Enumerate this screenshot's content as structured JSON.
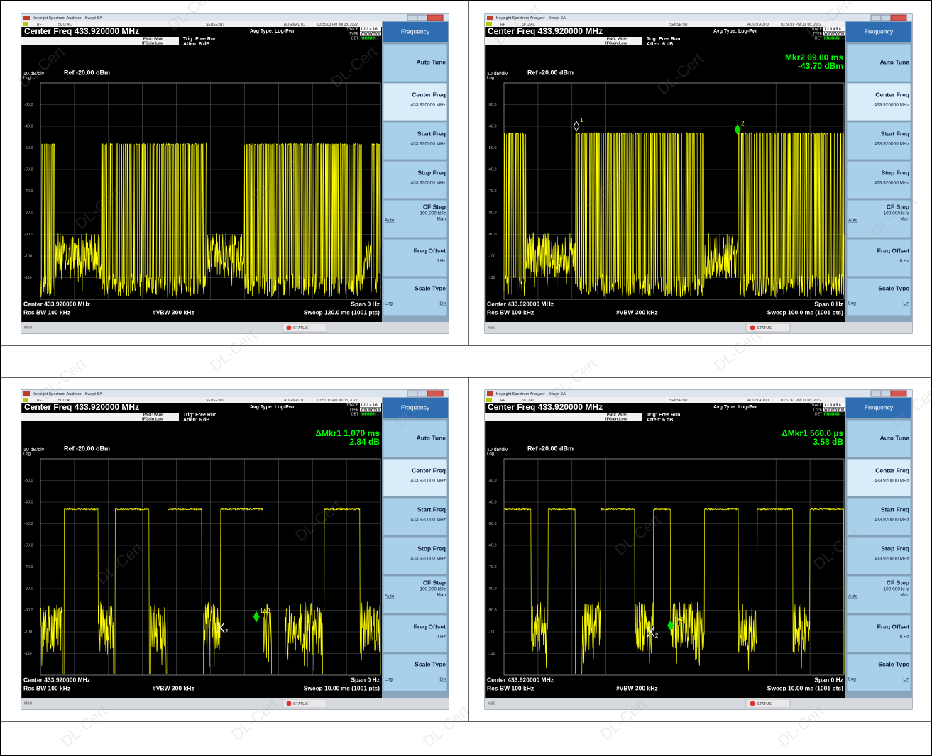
{
  "watermark": "DL-Cert",
  "panels": [
    {
      "window_title": "Keysight Spectrum Analyzer - Swept SA",
      "status_row": [
        "RF",
        "50 Ω  AC",
        "SENSE:INT",
        "ALIGN AUTO",
        "03:55:03 PM Jul 08, 2022"
      ],
      "center_freq": "Center Freq 433.920000 MHz",
      "pno": "PNO: Wide",
      "ifgain": "IFGain:Low",
      "trig": "Trig: Free Run",
      "atten": "Atten: 6 dB",
      "avg_type": "Avg Type: Log-Pwr",
      "trace_rows": [
        {
          "label": "TRACE",
          "value": "1 2 3 4 5 6"
        },
        {
          "label": "TYPE",
          "value": "WWWWWW"
        },
        {
          "label": "DET",
          "value": "NNNNNN"
        }
      ],
      "scale": "10 dB/div",
      "log": "Log",
      "ref": "Ref -20.00 dBm",
      "y_labels": [
        "-30.0",
        "-40.0",
        "-50.0",
        "-60.0",
        "-70.0",
        "-80.0",
        "-90.0",
        "-100",
        "-110"
      ],
      "footer": {
        "center": "Center 433.920000 MHz",
        "span": "Span 0 Hz",
        "rbw": "Res BW 100 kHz",
        "vbw": "#VBW 300 kHz",
        "sweep": "Sweep  120.0 ms (1001 pts)"
      },
      "msg": "MSG",
      "status": "STATUS",
      "softkeys": {
        "header": "Frequency",
        "buttons": [
          {
            "title": "Auto Tune"
          },
          {
            "title": "Center Freq",
            "value": "433.920000 MHz"
          },
          {
            "title": "Start Freq",
            "value": "433.920000 MHz"
          },
          {
            "title": "Stop Freq",
            "value": "433.920000 MHz"
          },
          {
            "title": "CF Step",
            "value": "100.000 kHz",
            "left": "Auto",
            "right": "Man"
          },
          {
            "title": "Freq Offset",
            "value": "0 Hz"
          },
          {
            "title": "Scale Type",
            "left": "Log",
            "right": "Lin"
          }
        ]
      }
    },
    {
      "window_title": "Keysight Spectrum Analyzer - Swept SA",
      "status_row": [
        "RF",
        "50 Ω  AC",
        "SENSE:INT",
        "ALIGN AUTO",
        "03:56:16 PM Jul 08, 2022"
      ],
      "center_freq": "Center Freq 433.920000 MHz",
      "pno": "PNO: Wide",
      "ifgain": "IFGain:Low",
      "trig": "Trig: Free Run",
      "atten": "Atten: 6 dB",
      "avg_type": "Avg Type: Log-Pwr",
      "trace_rows": [
        {
          "label": "TRACE",
          "value": "1 2 3 4 5 6"
        },
        {
          "label": "TYPE",
          "value": "WWWWWW"
        },
        {
          "label": "DET",
          "value": "NNNNNN"
        }
      ],
      "scale": "10 dB/div",
      "log": "Log",
      "ref": "Ref -20.00 dBm",
      "readout": [
        "Mkr2 69.00 ms",
        "-43.70 dBm"
      ],
      "markers": [
        {
          "label": "1"
        },
        {
          "label": "2"
        }
      ],
      "y_labels": [
        "-30.0",
        "-40.0",
        "-50.0",
        "-60.0",
        "-70.0",
        "-80.0",
        "-90.0",
        "-100",
        "-110"
      ],
      "footer": {
        "center": "Center 433.920000 MHz",
        "span": "Span 0 Hz",
        "rbw": "Res BW 100 kHz",
        "vbw": "#VBW 300 kHz",
        "sweep": "Sweep  100.0 ms (1001 pts)"
      },
      "msg": "MSG",
      "status": "STATUS",
      "softkeys": {
        "header": "Frequency",
        "buttons": [
          {
            "title": "Auto Tune"
          },
          {
            "title": "Center Freq",
            "value": "433.920000 MHz"
          },
          {
            "title": "Start Freq",
            "value": "433.920000 MHz"
          },
          {
            "title": "Stop Freq",
            "value": "433.920000 MHz"
          },
          {
            "title": "CF Step",
            "value": "100.000 kHz",
            "left": "Auto",
            "right": "Man"
          },
          {
            "title": "Freq Offset",
            "value": "0 Hz"
          },
          {
            "title": "Scale Type",
            "left": "Log",
            "right": "Lin"
          }
        ]
      }
    },
    {
      "window_title": "Keysight Spectrum Analyzer - Swept SA",
      "status_row": [
        "RF",
        "50 Ω  AC",
        "SENSE:INT",
        "ALIGN AUTO",
        "03:57:11 PM Jul 08, 2022"
      ],
      "center_freq": "Center Freq 433.920000 MHz",
      "pno": "PNO: Wide",
      "ifgain": "IFGain:Low",
      "trig": "Trig: Free Run",
      "atten": "Atten: 6 dB",
      "avg_type": "Avg Type: Log-Pwr",
      "trace_rows": [
        {
          "label": "TRACE",
          "value": "1 2 3 4 5 6"
        },
        {
          "label": "TYPE",
          "value": "WWWWWW"
        },
        {
          "label": "DET",
          "value": "NNNNNN"
        }
      ],
      "scale": "10 dB/div",
      "log": "Log",
      "ref": "Ref -20.00 dBm",
      "readout": [
        "ΔMkr1 1.070 ms",
        "2.84 dB"
      ],
      "markers": [
        {
          "label": "2"
        },
        {
          "label": "1Δ2"
        }
      ],
      "y_labels": [
        "-30.0",
        "-40.0",
        "-50.0",
        "-60.0",
        "-70.0",
        "-80.0",
        "-90.0",
        "-100",
        "-110"
      ],
      "footer": {
        "center": "Center 433.920000 MHz",
        "span": "Span 0 Hz",
        "rbw": "Res BW 100 kHz",
        "vbw": "#VBW 300 kHz",
        "sweep": "Sweep  10.00 ms (1001 pts)"
      },
      "msg": "MSG",
      "status": "STATUS",
      "softkeys": {
        "header": "Frequency",
        "buttons": [
          {
            "title": "Auto Tune"
          },
          {
            "title": "Center Freq",
            "value": "433.920000 MHz"
          },
          {
            "title": "Start Freq",
            "value": "433.920000 MHz"
          },
          {
            "title": "Stop Freq",
            "value": "433.920000 MHz"
          },
          {
            "title": "CF Step",
            "value": "100.000 kHz",
            "left": "Auto",
            "right": "Man"
          },
          {
            "title": "Freq Offset",
            "value": "0 Hz"
          },
          {
            "title": "Scale Type",
            "left": "Log",
            "right": "Lin"
          }
        ]
      }
    },
    {
      "window_title": "Keysight Spectrum Analyzer - Swept SA",
      "status_row": [
        "RF",
        "50 Ω  AC",
        "SENSE:INT",
        "ALIGN AUTO",
        "03:57:41 PM Jul 08, 2022"
      ],
      "center_freq": "Center Freq 433.920000 MHz",
      "pno": "PNO: Wide",
      "ifgain": "IFGain:Low",
      "trig": "Trig: Free Run",
      "atten": "Atten: 6 dB",
      "avg_type": "Avg Type: Log-Pwr",
      "trace_rows": [
        {
          "label": "TRACE",
          "value": "1 2 3 4 5 6"
        },
        {
          "label": "TYPE",
          "value": "WWWWWW"
        },
        {
          "label": "DET",
          "value": "NNNNNN"
        }
      ],
      "scale": "10 dB/div",
      "log": "Log",
      "ref": "Ref -20.00 dBm",
      "readout": [
        "ΔMkr1 560.0 µs",
        "3.58 dB"
      ],
      "markers": [
        {
          "label": "2"
        },
        {
          "label": "1Δ2"
        }
      ],
      "y_labels": [
        "-30.0",
        "-40.0",
        "-50.0",
        "-60.0",
        "-70.0",
        "-80.0",
        "-90.0",
        "-100",
        "-110"
      ],
      "footer": {
        "center": "Center 433.920000 MHz",
        "span": "Span 0 Hz",
        "rbw": "Res BW 100 kHz",
        "vbw": "#VBW 300 kHz",
        "sweep": "Sweep  10.00 ms (1001 pts)"
      },
      "msg": "MSG",
      "status": "STATUS",
      "softkeys": {
        "header": "Frequency",
        "buttons": [
          {
            "title": "Auto Tune"
          },
          {
            "title": "Center Freq",
            "value": "433.920000 MHz"
          },
          {
            "title": "Start Freq",
            "value": "433.920000 MHz"
          },
          {
            "title": "Stop Freq",
            "value": "433.920000 MHz"
          },
          {
            "title": "CF Step",
            "value": "100.000 kHz",
            "left": "Auto",
            "right": "Man"
          },
          {
            "title": "Freq Offset",
            "value": "0 Hz"
          },
          {
            "title": "Scale Type",
            "left": "Log",
            "right": "Lin"
          }
        ]
      }
    }
  ]
}
